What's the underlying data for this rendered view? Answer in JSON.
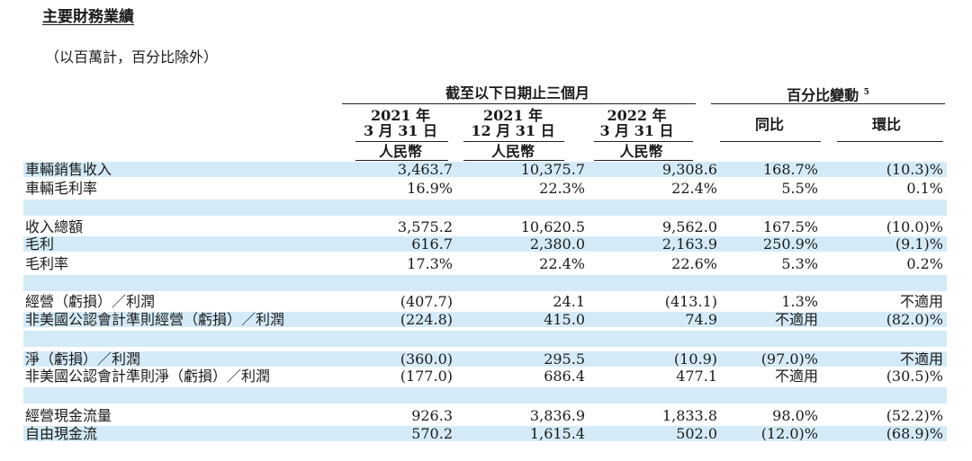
{
  "title": "主要財務業績",
  "subtitle": "（以百萬計，百分比除外）",
  "header": {
    "group1": "截至以下日期止三個月",
    "group2": "百分比變動",
    "group2_note": "5",
    "col1": {
      "year": "2021 年",
      "date": "3 月 31 日",
      "currency": "人民幣"
    },
    "col2": {
      "year": "2021 年",
      "date": "12 月 31 日",
      "currency": "人民幣"
    },
    "col3": {
      "year": "2022 年",
      "date": "3 月 31 日",
      "currency": "人民幣"
    },
    "col4": "同比",
    "col5": "環比"
  },
  "rows": [
    {
      "label": "車輛銷售收入",
      "v": [
        "3,463.7",
        "10,375.7",
        "9,308.6",
        "168.7%",
        "(10.3)%"
      ]
    },
    {
      "label": "車輛毛利率",
      "v": [
        "16.9%",
        "22.3%",
        "22.4%",
        "5.5%",
        "0.1%"
      ]
    },
    {
      "label": "收入總額",
      "v": [
        "3,575.2",
        "10,620.5",
        "9,562.0",
        "167.5%",
        "(10.0)%"
      ]
    },
    {
      "label": "毛利",
      "v": [
        "616.7",
        "2,380.0",
        "2,163.9",
        "250.9%",
        "(9.1)%"
      ]
    },
    {
      "label": "毛利率",
      "v": [
        "17.3%",
        "22.4%",
        "22.6%",
        "5.3%",
        "0.2%"
      ]
    },
    {
      "label": "經營（虧損）／利潤",
      "v": [
        "(407.7)",
        "24.1",
        "(413.1)",
        "1.3%",
        "不適用"
      ]
    },
    {
      "label": "非美國公認會計準則經營（虧損）／利潤",
      "v": [
        "(224.8)",
        "415.0",
        "74.9",
        "不適用",
        "(82.0)%"
      ]
    },
    {
      "label": "淨（虧損）／利潤",
      "v": [
        "(360.0)",
        "295.5",
        "(10.9)",
        "(97.0)%",
        "不適用"
      ]
    },
    {
      "label": "非美國公認會計準則淨（虧損）／利潤",
      "v": [
        "(177.0)",
        "686.4",
        "477.1",
        "不適用",
        "(30.5)%"
      ]
    },
    {
      "label": "經營現金流量",
      "v": [
        "926.3",
        "3,836.9",
        "1,833.8",
        "98.0%",
        "(52.2)%"
      ]
    },
    {
      "label": "自由現金流",
      "v": [
        "570.2",
        "1,615.4",
        "502.0",
        "(12.0)%",
        "(68.9)%"
      ]
    }
  ]
}
